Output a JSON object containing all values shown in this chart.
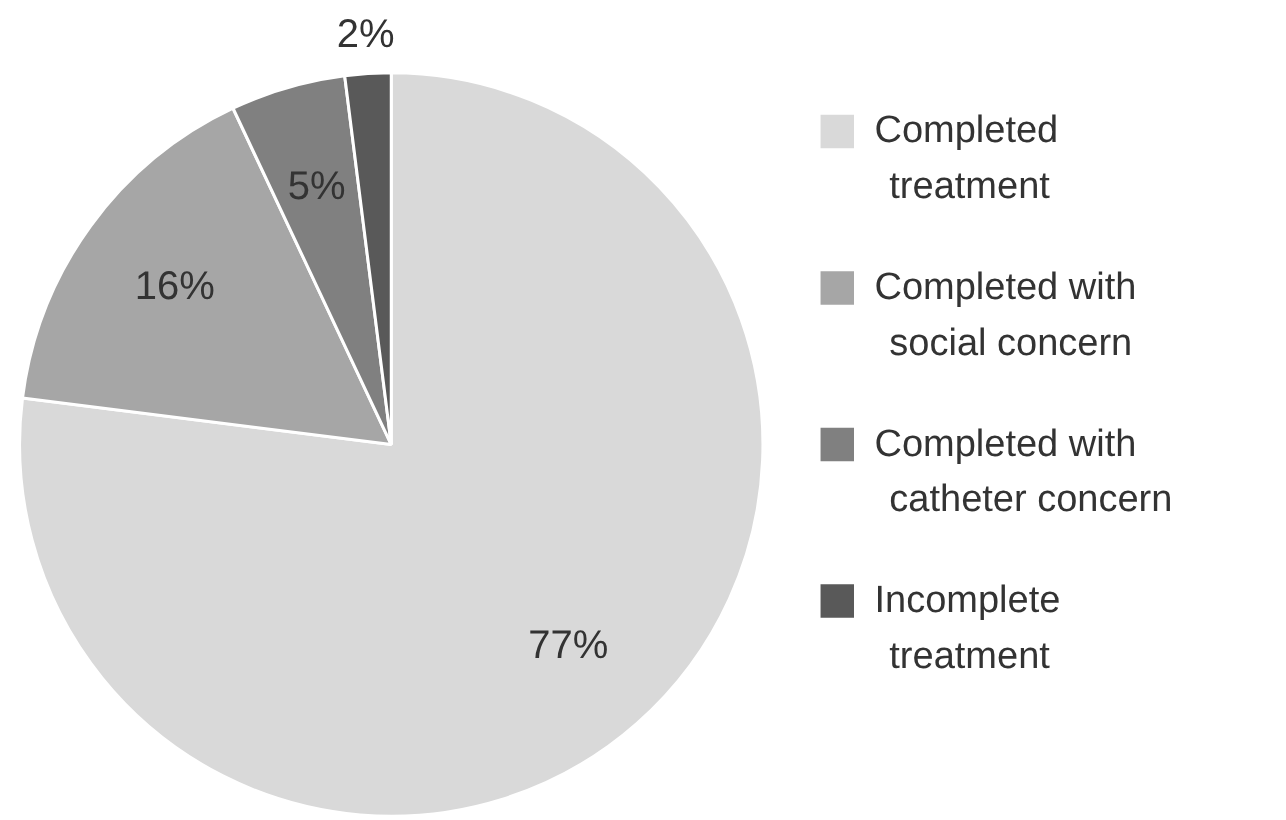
{
  "chart_data": {
    "type": "pie",
    "categories": [
      "Completed treatment",
      "Completed with social concern",
      "Completed with catheter concern",
      "Incomplete treatment"
    ],
    "values": [
      77,
      16,
      5,
      2
    ],
    "colors": [
      "#d9d9d9",
      "#a6a6a6",
      "#808080",
      "#595959"
    ],
    "value_labels": [
      "77%",
      "16%",
      "5%",
      "2%"
    ],
    "legend": "right"
  }
}
